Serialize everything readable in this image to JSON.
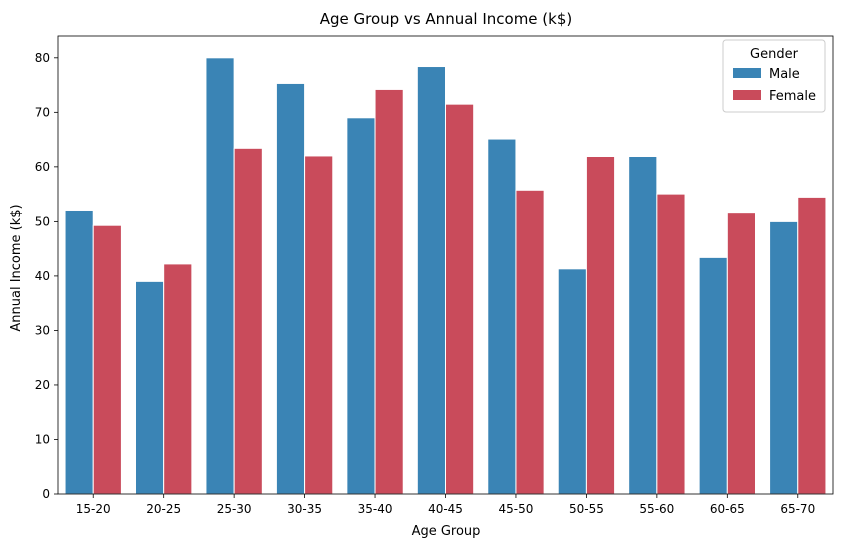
{
  "chart_data": {
    "type": "bar",
    "title": "Age Group vs Annual Income (k$)",
    "xlabel": "Age Group",
    "ylabel": "Annual Income (k$)",
    "ylim": [
      0,
      84
    ],
    "yticks": [
      0,
      10,
      20,
      30,
      40,
      50,
      60,
      70,
      80
    ],
    "grid": false,
    "legend": {
      "title": "Gender",
      "placement": "top-right"
    },
    "categories": [
      "15-20",
      "20-25",
      "25-30",
      "30-35",
      "35-40",
      "40-45",
      "45-50",
      "50-55",
      "55-60",
      "60-65",
      "65-70"
    ],
    "series": [
      {
        "name": "Male",
        "color": "#3a84b5",
        "values": [
          52.0,
          39.0,
          80.0,
          75.3,
          69.0,
          78.4,
          65.1,
          41.3,
          61.9,
          43.4,
          50.0
        ]
      },
      {
        "name": "Female",
        "color": "#c94b5b",
        "values": [
          49.3,
          42.2,
          63.4,
          62.0,
          74.2,
          71.5,
          55.7,
          61.9,
          55.0,
          51.6,
          54.4
        ]
      }
    ]
  }
}
